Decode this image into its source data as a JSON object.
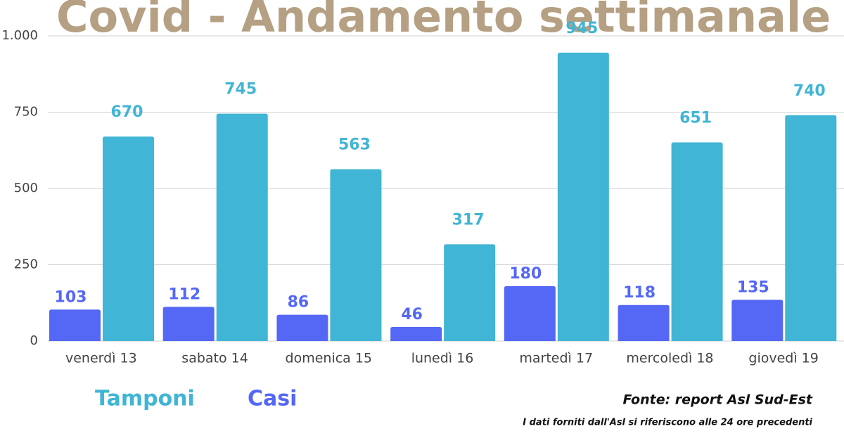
{
  "chart_data": {
    "type": "bar",
    "title": "Covid - Andamento settimanale",
    "categories": [
      "venerdì 13",
      "sabato 14",
      "domenica 15",
      "lunedì 16",
      "martedì 17",
      "mercoledì 18",
      "giovedì 19"
    ],
    "series": [
      {
        "name": "Casi",
        "color": "#5468f5",
        "values": [
          103,
          112,
          86,
          46,
          180,
          118,
          135
        ]
      },
      {
        "name": "Tamponi",
        "color": "#40b5d5",
        "values": [
          670,
          745,
          563,
          317,
          945,
          651,
          740
        ]
      }
    ],
    "ylim": [
      0,
      1000
    ],
    "yticks": [
      0,
      250,
      500,
      750,
      {
        "value": 1000,
        "label": "1.000"
      }
    ],
    "grid": true,
    "source": "Fonte: report Asl Sud-Est",
    "note": "I dati forniti dall'Asl si riferiscono alle 24 ore precedenti"
  }
}
